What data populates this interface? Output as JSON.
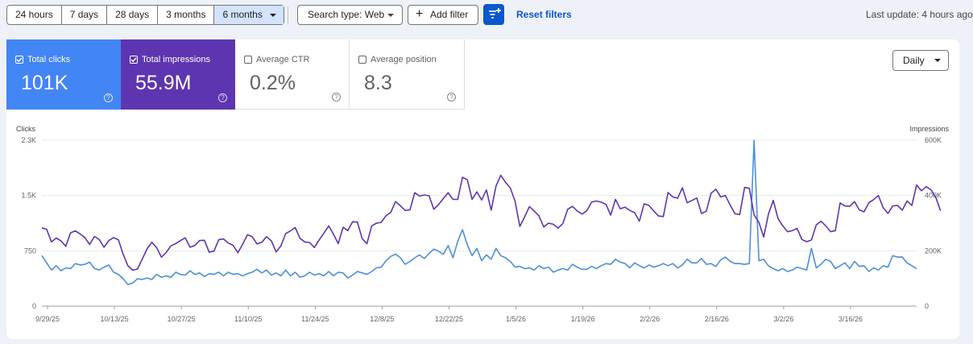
{
  "toolbar": {
    "date_ranges": [
      "24 hours",
      "7 days",
      "28 days",
      "3 months",
      "6 months"
    ],
    "active_range": "6 months",
    "search_type": "Search type: Web",
    "add_filter": "Add filter",
    "reset_filters": "Reset filters",
    "last_update": "Last update: 4 hours ago"
  },
  "metrics": {
    "clicks": {
      "label": "Total clicks",
      "value": "101K",
      "checked": true,
      "color": "#4285f4"
    },
    "impressions": {
      "label": "Total impressions",
      "value": "55.9M",
      "checked": true,
      "color": "#5e35b1"
    },
    "ctr": {
      "label": "Average CTR",
      "value": "0.2%",
      "checked": false
    },
    "position": {
      "label": "Average position",
      "value": "8.3",
      "checked": false
    }
  },
  "granularity": "Daily",
  "chart_data": {
    "type": "line",
    "left_axis": {
      "title": "Clicks",
      "ticks": [
        "2.3K",
        "1.5K",
        "750",
        "0"
      ],
      "range": [
        0,
        2300
      ]
    },
    "right_axis": {
      "title": "Impressions",
      "ticks": [
        "600K",
        "400K",
        "200K",
        "0"
      ],
      "range": [
        0,
        600000
      ]
    },
    "x_ticks": [
      "9/29/25",
      "10/13/25",
      "10/27/25",
      "11/10/25",
      "11/24/25",
      "12/8/25",
      "12/22/25",
      "1/5/26",
      "1/19/26",
      "2/2/26",
      "2/16/26",
      "3/2/26",
      "3/16/26"
    ],
    "series": [
      {
        "name": "Clicks",
        "axis": "left",
        "color": "#4e8fd6",
        "values": [
          700,
          600,
          500,
          560,
          490,
          530,
          520,
          590,
          570,
          580,
          610,
          520,
          500,
          540,
          570,
          470,
          440,
          380,
          300,
          320,
          380,
          370,
          390,
          370,
          440,
          400,
          420,
          400,
          470,
          440,
          430,
          490,
          440,
          460,
          410,
          450,
          440,
          470,
          420,
          470,
          440,
          450,
          420,
          450,
          470,
          510,
          460,
          500,
          430,
          460,
          420,
          500,
          420,
          470,
          400,
          420,
          470,
          430,
          450,
          420,
          480,
          420,
          470,
          460,
          390,
          430,
          480,
          460,
          440,
          480,
          530,
          540,
          630,
          690,
          720,
          670,
          580,
          620,
          670,
          710,
          660,
          730,
          790,
          760,
          720,
          840,
          670,
          900,
          1060,
          850,
          700,
          800,
          630,
          710,
          650,
          800,
          700,
          670,
          620,
          540,
          550,
          520,
          530,
          500,
          560,
          520,
          540,
          470,
          500,
          520,
          500,
          580,
          540,
          510,
          510,
          550,
          520,
          560,
          590,
          580,
          650,
          610,
          590,
          530,
          600,
          560,
          530,
          570,
          540,
          560,
          590,
          560,
          590,
          530,
          570,
          650,
          600,
          600,
          660,
          580,
          590,
          550,
          640,
          680,
          620,
          590,
          590,
          580,
          590,
          2300,
          630,
          650,
          560,
          520,
          490,
          520,
          480,
          500,
          540,
          520,
          500,
          800,
          530,
          580,
          650,
          620,
          520,
          560,
          600,
          520,
          620,
          550,
          560,
          480,
          530,
          500,
          560,
          540,
          700,
          680,
          680,
          600,
          560,
          520
        ]
      },
      {
        "name": "Impressions",
        "axis": "right",
        "color": "#5e35b1",
        "values": [
          283000,
          278000,
          232000,
          246000,
          236000,
          216000,
          265000,
          272000,
          261000,
          248000,
          223000,
          252000,
          241000,
          213000,
          237000,
          248000,
          240000,
          188000,
          146000,
          130000,
          134000,
          170000,
          207000,
          231000,
          212000,
          177000,
          194000,
          218000,
          226000,
          237000,
          247000,
          213000,
          219000,
          237000,
          238000,
          195000,
          199000,
          240000,
          243000,
          228000,
          220000,
          193000,
          223000,
          258000,
          251000,
          225000,
          231000,
          251000,
          236000,
          196000,
          218000,
          262000,
          272000,
          284000,
          245000,
          232000,
          230000,
          212000,
          239000,
          264000,
          290000,
          260000,
          226000,
          285000,
          273000,
          305000,
          304000,
          244000,
          226000,
          290000,
          300000,
          303000,
          327000,
          339000,
          378000,
          363000,
          346000,
          348000,
          410000,
          398000,
          402000,
          399000,
          350000,
          368000,
          389000,
          410000,
          386000,
          386000,
          466000,
          457000,
          386000,
          413000,
          384000,
          420000,
          347000,
          434000,
          473000,
          448000,
          427000,
          379000,
          288000,
          323000,
          360000,
          344000,
          326000,
          286000,
          300000,
          296000,
          282000,
          299000,
          350000,
          361000,
          344000,
          333000,
          345000,
          376000,
          380000,
          376000,
          368000,
          329000,
          386000,
          352000,
          358000,
          346000,
          338000,
          307000,
          370000,
          364000,
          344000,
          326000,
          324000,
          411000,
          395000,
          390000,
          428000,
          374000,
          382000,
          391000,
          335000,
          343000,
          408000,
          423000,
          395000,
          400000,
          365000,
          334000,
          331000,
          429000,
          426000,
          330000,
          303000,
          250000,
          332000,
          382000,
          317000,
          290000,
          269000,
          273000,
          281000,
          241000,
          233000,
          239000,
          294000,
          307000,
          290000,
          269000,
          273000,
          373000,
          362000,
          361000,
          378000,
          348000,
          341000,
          374000,
          385000,
          400000,
          356000,
          335000,
          362000,
          364000,
          347000,
          380000,
          364000,
          438000,
          417000,
          432000,
          421000,
          394000,
          345000
        ]
      }
    ]
  }
}
